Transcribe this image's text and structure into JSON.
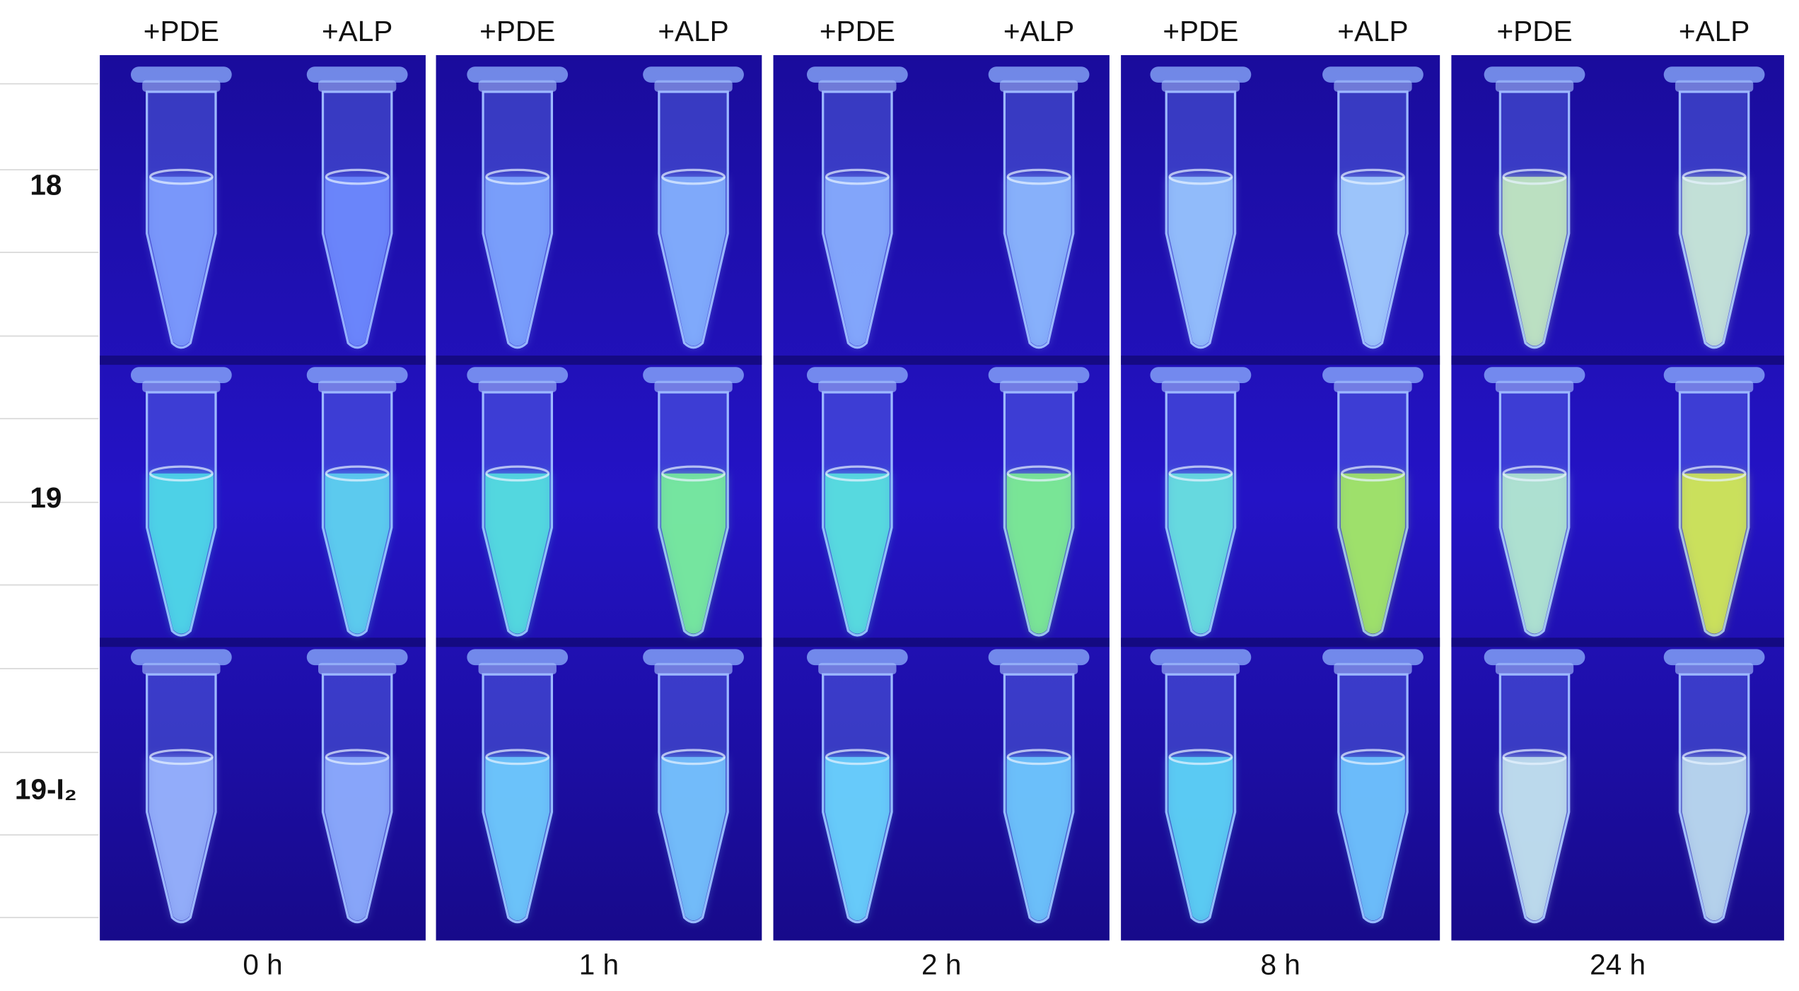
{
  "panels": [
    {
      "columns": [
        "+PDE",
        "+ALP"
      ],
      "time": "0 h"
    },
    {
      "columns": [
        "+PDE",
        "+ALP"
      ],
      "time": "1 h"
    },
    {
      "columns": [
        "+PDE",
        "+ALP"
      ],
      "time": "2 h"
    },
    {
      "columns": [
        "+PDE",
        "+ALP"
      ],
      "time": "8 h"
    },
    {
      "columns": [
        "+PDE",
        "+ALP"
      ],
      "time": "24 h"
    }
  ],
  "rows": [
    "18",
    "19",
    "19-I₂"
  ]
}
